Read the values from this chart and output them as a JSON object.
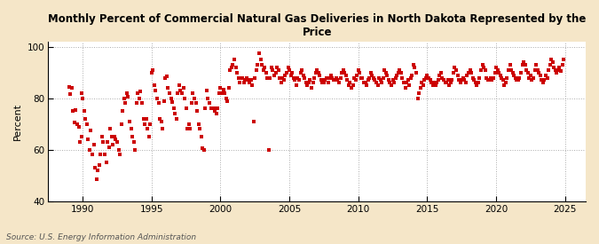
{
  "title": "Monthly Percent of Commercial Natural Gas Deliveries in North Dakota Represented by the\nPrice",
  "ylabel": "Percent",
  "source": "Source: U.S. Energy Information Administration",
  "xlim": [
    1987.5,
    2026.5
  ],
  "ylim": [
    40,
    102
  ],
  "yticks": [
    40,
    60,
    80,
    100
  ],
  "xticks": [
    1990,
    1995,
    2000,
    2005,
    2010,
    2015,
    2020,
    2025
  ],
  "background_color": "#f5e6c8",
  "plot_bg_color": "#ffffff",
  "dot_color": "#cc0000",
  "marker_size": 6,
  "data": [
    [
      1989.0,
      84.5
    ],
    [
      1989.1,
      81.5
    ],
    [
      1989.2,
      84.0
    ],
    [
      1989.3,
      75.0
    ],
    [
      1989.4,
      70.5
    ],
    [
      1989.5,
      75.5
    ],
    [
      1989.6,
      70.0
    ],
    [
      1989.7,
      69.0
    ],
    [
      1989.8,
      63.0
    ],
    [
      1989.9,
      65.0
    ],
    [
      1989.95,
      82.0
    ],
    [
      1990.0,
      80.0
    ],
    [
      1990.1,
      75.0
    ],
    [
      1990.2,
      72.0
    ],
    [
      1990.3,
      70.0
    ],
    [
      1990.4,
      64.0
    ],
    [
      1990.5,
      60.0
    ],
    [
      1990.6,
      67.5
    ],
    [
      1990.7,
      58.0
    ],
    [
      1990.8,
      62.0
    ],
    [
      1990.9,
      53.0
    ],
    [
      1991.0,
      48.5
    ],
    [
      1991.1,
      52.0
    ],
    [
      1991.2,
      54.0
    ],
    [
      1991.3,
      58.0
    ],
    [
      1991.4,
      65.0
    ],
    [
      1991.5,
      63.0
    ],
    [
      1991.6,
      58.0
    ],
    [
      1991.7,
      55.0
    ],
    [
      1991.8,
      63.0
    ],
    [
      1991.9,
      61.0
    ],
    [
      1992.0,
      68.0
    ],
    [
      1992.1,
      65.0
    ],
    [
      1992.2,
      62.0
    ],
    [
      1992.3,
      65.0
    ],
    [
      1992.4,
      64.0
    ],
    [
      1992.5,
      63.0
    ],
    [
      1992.6,
      60.0
    ],
    [
      1992.7,
      58.0
    ],
    [
      1992.8,
      70.0
    ],
    [
      1992.9,
      75.0
    ],
    [
      1993.0,
      80.0
    ],
    [
      1993.1,
      78.0
    ],
    [
      1993.2,
      82.0
    ],
    [
      1993.3,
      80.5
    ],
    [
      1993.4,
      71.0
    ],
    [
      1993.5,
      68.0
    ],
    [
      1993.6,
      65.0
    ],
    [
      1993.7,
      63.0
    ],
    [
      1993.8,
      60.0
    ],
    [
      1993.9,
      78.0
    ],
    [
      1994.0,
      82.0
    ],
    [
      1994.1,
      80.0
    ],
    [
      1994.2,
      82.5
    ],
    [
      1994.3,
      78.0
    ],
    [
      1994.4,
      72.0
    ],
    [
      1994.5,
      70.0
    ],
    [
      1994.6,
      72.0
    ],
    [
      1994.7,
      68.0
    ],
    [
      1994.8,
      65.0
    ],
    [
      1994.9,
      70.0
    ],
    [
      1995.0,
      90.0
    ],
    [
      1995.1,
      91.0
    ],
    [
      1995.2,
      85.0
    ],
    [
      1995.3,
      83.0
    ],
    [
      1995.4,
      80.0
    ],
    [
      1995.5,
      78.0
    ],
    [
      1995.6,
      72.0
    ],
    [
      1995.7,
      71.0
    ],
    [
      1995.8,
      68.0
    ],
    [
      1995.9,
      79.0
    ],
    [
      1996.0,
      88.0
    ],
    [
      1996.1,
      88.5
    ],
    [
      1996.2,
      84.0
    ],
    [
      1996.3,
      82.0
    ],
    [
      1996.4,
      80.0
    ],
    [
      1996.5,
      78.5
    ],
    [
      1996.6,
      76.0
    ],
    [
      1996.7,
      74.0
    ],
    [
      1996.8,
      72.0
    ],
    [
      1996.9,
      82.0
    ],
    [
      1997.0,
      85.0
    ],
    [
      1997.1,
      83.0
    ],
    [
      1997.2,
      82.0
    ],
    [
      1997.3,
      84.0
    ],
    [
      1997.4,
      80.0
    ],
    [
      1997.5,
      76.0
    ],
    [
      1997.6,
      68.0
    ],
    [
      1997.7,
      70.0
    ],
    [
      1997.8,
      68.0
    ],
    [
      1997.9,
      78.0
    ],
    [
      1998.0,
      82.0
    ],
    [
      1998.1,
      80.0
    ],
    [
      1998.2,
      78.0
    ],
    [
      1998.3,
      75.0
    ],
    [
      1998.4,
      70.0
    ],
    [
      1998.5,
      68.0
    ],
    [
      1998.6,
      65.0
    ],
    [
      1998.7,
      60.5
    ],
    [
      1998.8,
      60.0
    ],
    [
      1998.9,
      76.0
    ],
    [
      1999.0,
      83.0
    ],
    [
      1999.1,
      80.0
    ],
    [
      1999.2,
      78.0
    ],
    [
      1999.3,
      76.0
    ],
    [
      1999.4,
      76.0
    ],
    [
      1999.5,
      76.0
    ],
    [
      1999.6,
      75.0
    ],
    [
      1999.7,
      74.0
    ],
    [
      1999.8,
      76.0
    ],
    [
      1999.9,
      82.0
    ],
    [
      2000.0,
      84.0
    ],
    [
      2000.1,
      82.0
    ],
    [
      2000.2,
      83.5
    ],
    [
      2000.3,
      82.0
    ],
    [
      2000.4,
      80.0
    ],
    [
      2000.5,
      79.0
    ],
    [
      2000.6,
      84.0
    ],
    [
      2000.7,
      91.0
    ],
    [
      2000.8,
      92.0
    ],
    [
      2000.9,
      93.0
    ],
    [
      2001.0,
      95.0
    ],
    [
      2001.1,
      92.0
    ],
    [
      2001.2,
      90.0
    ],
    [
      2001.3,
      88.0
    ],
    [
      2001.4,
      86.0
    ],
    [
      2001.5,
      88.0
    ],
    [
      2001.6,
      88.0
    ],
    [
      2001.7,
      86.0
    ],
    [
      2001.8,
      87.0
    ],
    [
      2001.9,
      88.0
    ],
    [
      2002.0,
      87.0
    ],
    [
      2002.1,
      86.0
    ],
    [
      2002.2,
      87.0
    ],
    [
      2002.3,
      85.0
    ],
    [
      2002.4,
      71.0
    ],
    [
      2002.5,
      88.0
    ],
    [
      2002.6,
      91.0
    ],
    [
      2002.7,
      93.0
    ],
    [
      2002.8,
      97.5
    ],
    [
      2002.9,
      95.0
    ],
    [
      2003.0,
      93.0
    ],
    [
      2003.1,
      91.0
    ],
    [
      2003.2,
      92.0
    ],
    [
      2003.3,
      90.0
    ],
    [
      2003.4,
      88.0
    ],
    [
      2003.5,
      60.0
    ],
    [
      2003.6,
      88.0
    ],
    [
      2003.7,
      92.0
    ],
    [
      2003.8,
      91.0
    ],
    [
      2003.9,
      89.0
    ],
    [
      2004.0,
      90.0
    ],
    [
      2004.1,
      92.0
    ],
    [
      2004.2,
      91.0
    ],
    [
      2004.3,
      88.0
    ],
    [
      2004.4,
      86.0
    ],
    [
      2004.5,
      88.0
    ],
    [
      2004.6,
      87.0
    ],
    [
      2004.7,
      89.0
    ],
    [
      2004.8,
      90.0
    ],
    [
      2004.9,
      92.0
    ],
    [
      2005.0,
      91.0
    ],
    [
      2005.1,
      89.0
    ],
    [
      2005.2,
      90.0
    ],
    [
      2005.3,
      88.0
    ],
    [
      2005.4,
      87.0
    ],
    [
      2005.5,
      85.0
    ],
    [
      2005.6,
      88.0
    ],
    [
      2005.7,
      87.0
    ],
    [
      2005.8,
      90.0
    ],
    [
      2005.9,
      91.0
    ],
    [
      2006.0,
      89.0
    ],
    [
      2006.1,
      88.0
    ],
    [
      2006.2,
      86.0
    ],
    [
      2006.3,
      85.0
    ],
    [
      2006.4,
      86.0
    ],
    [
      2006.5,
      87.0
    ],
    [
      2006.6,
      84.0
    ],
    [
      2006.7,
      86.0
    ],
    [
      2006.8,
      88.0
    ],
    [
      2006.9,
      90.0
    ],
    [
      2007.0,
      91.0
    ],
    [
      2007.1,
      90.0
    ],
    [
      2007.2,
      89.0
    ],
    [
      2007.3,
      87.0
    ],
    [
      2007.4,
      86.0
    ],
    [
      2007.5,
      86.0
    ],
    [
      2007.6,
      87.0
    ],
    [
      2007.7,
      88.0
    ],
    [
      2007.8,
      86.0
    ],
    [
      2007.9,
      88.0
    ],
    [
      2008.0,
      89.0
    ],
    [
      2008.1,
      88.0
    ],
    [
      2008.2,
      87.0
    ],
    [
      2008.3,
      87.0
    ],
    [
      2008.4,
      88.0
    ],
    [
      2008.5,
      87.0
    ],
    [
      2008.6,
      86.0
    ],
    [
      2008.7,
      88.0
    ],
    [
      2008.8,
      90.0
    ],
    [
      2008.9,
      91.0
    ],
    [
      2009.0,
      90.0
    ],
    [
      2009.1,
      89.0
    ],
    [
      2009.2,
      87.0
    ],
    [
      2009.3,
      85.0
    ],
    [
      2009.4,
      86.0
    ],
    [
      2009.5,
      84.0
    ],
    [
      2009.6,
      85.0
    ],
    [
      2009.7,
      88.0
    ],
    [
      2009.8,
      87.0
    ],
    [
      2009.9,
      89.0
    ],
    [
      2010.0,
      91.0
    ],
    [
      2010.1,
      90.0
    ],
    [
      2010.2,
      88.0
    ],
    [
      2010.3,
      88.0
    ],
    [
      2010.4,
      86.0
    ],
    [
      2010.5,
      86.0
    ],
    [
      2010.6,
      85.0
    ],
    [
      2010.7,
      87.0
    ],
    [
      2010.8,
      88.0
    ],
    [
      2010.9,
      90.0
    ],
    [
      2011.0,
      89.0
    ],
    [
      2011.1,
      88.0
    ],
    [
      2011.2,
      87.0
    ],
    [
      2011.3,
      86.0
    ],
    [
      2011.4,
      85.0
    ],
    [
      2011.5,
      88.0
    ],
    [
      2011.6,
      87.0
    ],
    [
      2011.7,
      86.0
    ],
    [
      2011.8,
      88.0
    ],
    [
      2011.9,
      91.0
    ],
    [
      2012.0,
      90.0
    ],
    [
      2012.1,
      89.0
    ],
    [
      2012.2,
      87.0
    ],
    [
      2012.3,
      86.0
    ],
    [
      2012.4,
      85.0
    ],
    [
      2012.5,
      87.0
    ],
    [
      2012.6,
      86.0
    ],
    [
      2012.7,
      88.0
    ],
    [
      2012.8,
      89.0
    ],
    [
      2012.9,
      90.0
    ],
    [
      2013.0,
      91.0
    ],
    [
      2013.1,
      90.0
    ],
    [
      2013.2,
      88.0
    ],
    [
      2013.3,
      86.0
    ],
    [
      2013.4,
      84.0
    ],
    [
      2013.5,
      86.0
    ],
    [
      2013.6,
      87.0
    ],
    [
      2013.7,
      85.0
    ],
    [
      2013.8,
      88.0
    ],
    [
      2013.9,
      89.0
    ],
    [
      2014.0,
      93.0
    ],
    [
      2014.1,
      92.0
    ],
    [
      2014.2,
      90.0
    ],
    [
      2014.3,
      80.0
    ],
    [
      2014.4,
      82.0
    ],
    [
      2014.5,
      84.0
    ],
    [
      2014.6,
      86.0
    ],
    [
      2014.7,
      85.0
    ],
    [
      2014.8,
      87.0
    ],
    [
      2014.9,
      88.0
    ],
    [
      2015.0,
      89.0
    ],
    [
      2015.1,
      88.0
    ],
    [
      2015.2,
      87.0
    ],
    [
      2015.3,
      86.0
    ],
    [
      2015.4,
      85.0
    ],
    [
      2015.5,
      86.0
    ],
    [
      2015.6,
      85.0
    ],
    [
      2015.7,
      86.0
    ],
    [
      2015.8,
      87.0
    ],
    [
      2015.9,
      89.0
    ],
    [
      2016.0,
      90.0
    ],
    [
      2016.1,
      88.0
    ],
    [
      2016.2,
      87.0
    ],
    [
      2016.3,
      86.0
    ],
    [
      2016.4,
      86.0
    ],
    [
      2016.5,
      87.0
    ],
    [
      2016.6,
      85.0
    ],
    [
      2016.7,
      86.0
    ],
    [
      2016.8,
      87.0
    ],
    [
      2016.9,
      90.0
    ],
    [
      2017.0,
      92.0
    ],
    [
      2017.1,
      91.0
    ],
    [
      2017.2,
      89.0
    ],
    [
      2017.3,
      87.0
    ],
    [
      2017.4,
      86.0
    ],
    [
      2017.5,
      87.0
    ],
    [
      2017.6,
      88.0
    ],
    [
      2017.7,
      87.0
    ],
    [
      2017.8,
      86.0
    ],
    [
      2017.9,
      89.0
    ],
    [
      2018.0,
      90.0
    ],
    [
      2018.1,
      91.0
    ],
    [
      2018.2,
      90.0
    ],
    [
      2018.3,
      88.0
    ],
    [
      2018.4,
      87.0
    ],
    [
      2018.5,
      86.0
    ],
    [
      2018.6,
      85.0
    ],
    [
      2018.7,
      86.0
    ],
    [
      2018.8,
      88.0
    ],
    [
      2018.9,
      91.0
    ],
    [
      2019.0,
      93.0
    ],
    [
      2019.1,
      92.0
    ],
    [
      2019.2,
      91.0
    ],
    [
      2019.3,
      88.0
    ],
    [
      2019.4,
      87.0
    ],
    [
      2019.5,
      87.0
    ],
    [
      2019.6,
      88.0
    ],
    [
      2019.7,
      87.0
    ],
    [
      2019.8,
      88.0
    ],
    [
      2019.9,
      90.0
    ],
    [
      2020.0,
      92.0
    ],
    [
      2020.1,
      91.0
    ],
    [
      2020.2,
      90.0
    ],
    [
      2020.3,
      89.0
    ],
    [
      2020.4,
      88.0
    ],
    [
      2020.5,
      87.0
    ],
    [
      2020.6,
      85.0
    ],
    [
      2020.7,
      86.0
    ],
    [
      2020.8,
      88.0
    ],
    [
      2020.9,
      91.0
    ],
    [
      2021.0,
      93.0
    ],
    [
      2021.1,
      91.0
    ],
    [
      2021.2,
      90.0
    ],
    [
      2021.3,
      89.0
    ],
    [
      2021.4,
      88.0
    ],
    [
      2021.5,
      87.0
    ],
    [
      2021.6,
      87.0
    ],
    [
      2021.7,
      88.0
    ],
    [
      2021.8,
      90.0
    ],
    [
      2021.9,
      93.0
    ],
    [
      2022.0,
      94.0
    ],
    [
      2022.1,
      93.0
    ],
    [
      2022.2,
      91.0
    ],
    [
      2022.3,
      90.0
    ],
    [
      2022.4,
      88.0
    ],
    [
      2022.5,
      89.0
    ],
    [
      2022.6,
      87.0
    ],
    [
      2022.7,
      88.0
    ],
    [
      2022.8,
      91.0
    ],
    [
      2022.9,
      93.0
    ],
    [
      2023.0,
      91.0
    ],
    [
      2023.1,
      90.0
    ],
    [
      2023.2,
      89.0
    ],
    [
      2023.3,
      87.0
    ],
    [
      2023.4,
      86.0
    ],
    [
      2023.5,
      87.0
    ],
    [
      2023.6,
      89.0
    ],
    [
      2023.7,
      88.0
    ],
    [
      2023.8,
      91.0
    ],
    [
      2023.9,
      93.0
    ],
    [
      2024.0,
      95.0
    ],
    [
      2024.1,
      94.0
    ],
    [
      2024.2,
      92.0
    ],
    [
      2024.3,
      91.0
    ],
    [
      2024.4,
      90.0
    ],
    [
      2024.5,
      91.0
    ],
    [
      2024.6,
      92.0
    ],
    [
      2024.7,
      90.5
    ],
    [
      2024.8,
      93.0
    ],
    [
      2024.9,
      95.0
    ]
  ]
}
